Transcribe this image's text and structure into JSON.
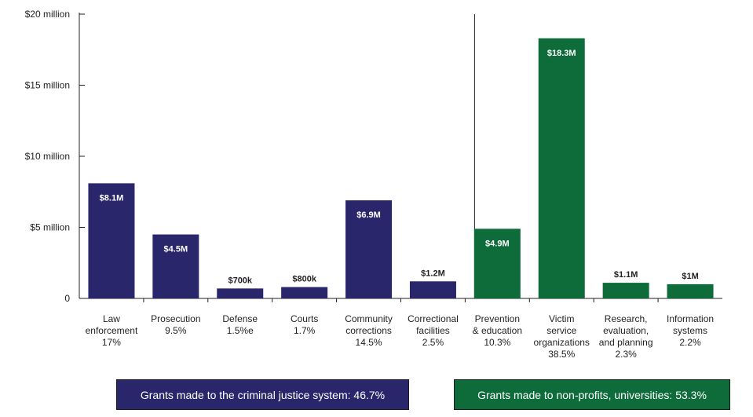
{
  "chart_data": {
    "type": "bar",
    "title": "",
    "xlabel": "",
    "ylabel": "",
    "ylim": [
      0,
      20
    ],
    "yticks": [
      {
        "value": 0,
        "label": "0"
      },
      {
        "value": 5,
        "label": "$5 million"
      },
      {
        "value": 10,
        "label": "$10 million"
      },
      {
        "value": 15,
        "label": "$15 million"
      },
      {
        "value": 20,
        "label": "$20 million"
      }
    ],
    "colors": {
      "criminal_justice": "#29266b",
      "non_profit": "#0e6b3a"
    },
    "bars": [
      {
        "category": [
          "Law",
          "enforcement",
          "17%"
        ],
        "value": 8.1,
        "label": "$8.1M",
        "group": "criminal_justice"
      },
      {
        "category": [
          "Prosecution",
          "9.5%"
        ],
        "value": 4.5,
        "label": "$4.5M",
        "group": "criminal_justice"
      },
      {
        "category": [
          "Defense",
          "1.5%e"
        ],
        "value": 0.7,
        "label": "$700k",
        "group": "criminal_justice"
      },
      {
        "category": [
          "Courts",
          "1.7%"
        ],
        "value": 0.8,
        "label": "$800k",
        "group": "criminal_justice"
      },
      {
        "category": [
          "Community",
          "corrections",
          "14.5%"
        ],
        "value": 6.9,
        "label": "$6.9M",
        "group": "criminal_justice"
      },
      {
        "category": [
          "Correctional",
          "facilities",
          "2.5%"
        ],
        "value": 1.2,
        "label": "$1.2M",
        "group": "criminal_justice"
      },
      {
        "category": [
          "Prevention",
          "& education",
          "10.3%"
        ],
        "value": 4.9,
        "label": "$4.9M",
        "group": "non_profit"
      },
      {
        "category": [
          "Victim",
          "service",
          "organizations",
          "38.5%"
        ],
        "value": 18.3,
        "label": "$18.3M",
        "group": "non_profit"
      },
      {
        "category": [
          "Research,",
          "evaluation,",
          "and planning",
          "2.3%"
        ],
        "value": 1.1,
        "label": "$1.1M",
        "group": "non_profit"
      },
      {
        "category": [
          "Information",
          "systems",
          "2.2%"
        ],
        "value": 1.0,
        "label": "$1M",
        "group": "non_profit"
      }
    ],
    "legend": {
      "criminal_justice": "Grants made to the criminal justice system: 46.7%",
      "non_profit": "Grants made to non-profits, universities: 53.3%"
    }
  }
}
